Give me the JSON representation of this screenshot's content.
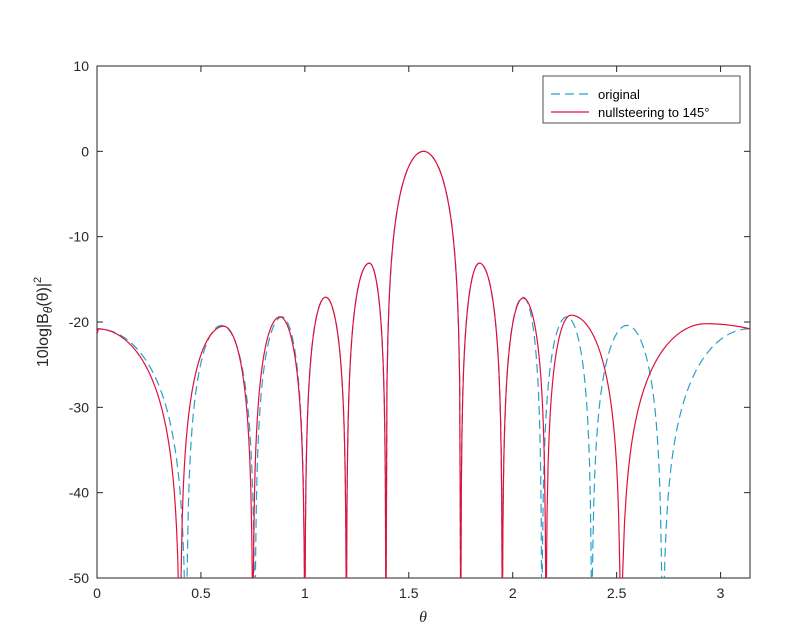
{
  "chart_data": {
    "type": "line",
    "title": "",
    "xlabel": "θ",
    "ylabel": "10log|B_θ(θ)|^2",
    "ylabel_parts": {
      "base": "10log|B",
      "sub": "θ",
      "mid": "(θ)|",
      "sup": "2"
    },
    "xlim": [
      0,
      3.1416
    ],
    "ylim": [
      -50,
      10
    ],
    "xticks": [
      0,
      0.5,
      1,
      1.5,
      2,
      2.5,
      3
    ],
    "xtick_labels": [
      "0",
      "0.5",
      "1",
      "1.5",
      "2",
      "2.5",
      "3"
    ],
    "yticks": [
      -50,
      -40,
      -30,
      -20,
      -10,
      0,
      10
    ],
    "ytick_labels": [
      "-50",
      "-40",
      "-30",
      "-20",
      "-10",
      "0",
      "10"
    ],
    "grid": false,
    "legend_position": "top-right",
    "series": [
      {
        "name": "original",
        "color": "#2b9fc8",
        "style": "dashed",
        "nulls": [
          0.43,
          0.76,
          1.0,
          1.2,
          1.39,
          1.75,
          1.95,
          2.14,
          2.38,
          2.72
        ],
        "lobes": [
          {
            "x": 0.0,
            "y": -20.8
          },
          {
            "x": 0.6,
            "y": -20.4
          },
          {
            "x": 0.89,
            "y": -19.4
          },
          {
            "x": 1.1,
            "y": -17.1
          },
          {
            "x": 1.31,
            "y": -13.1
          },
          {
            "x": 1.571,
            "y": 0.0
          },
          {
            "x": 1.84,
            "y": -13.1
          },
          {
            "x": 2.05,
            "y": -17.1
          },
          {
            "x": 2.26,
            "y": -19.4
          },
          {
            "x": 2.55,
            "y": -20.4
          },
          {
            "x": 3.1416,
            "y": -20.8
          }
        ]
      },
      {
        "name": "nullsteering to 145°",
        "color": "#e0103c",
        "style": "solid",
        "nulls": [
          0.4,
          0.75,
          1.0,
          1.2,
          1.39,
          1.75,
          1.95,
          2.16,
          2.52,
          2.52
        ],
        "lobes": [
          {
            "x": 0.0,
            "y": -20.8
          },
          {
            "x": 0.61,
            "y": -20.5
          },
          {
            "x": 0.88,
            "y": -19.4
          },
          {
            "x": 1.1,
            "y": -17.1
          },
          {
            "x": 1.31,
            "y": -13.1
          },
          {
            "x": 1.571,
            "y": 0.0
          },
          {
            "x": 1.84,
            "y": -13.1
          },
          {
            "x": 2.05,
            "y": -17.2
          },
          {
            "x": 2.28,
            "y": -19.2
          },
          {
            "x": 2.52,
            "y": -50.0
          },
          {
            "x": 2.93,
            "y": -20.2
          },
          {
            "x": 3.1416,
            "y": -20.8
          }
        ]
      }
    ]
  }
}
